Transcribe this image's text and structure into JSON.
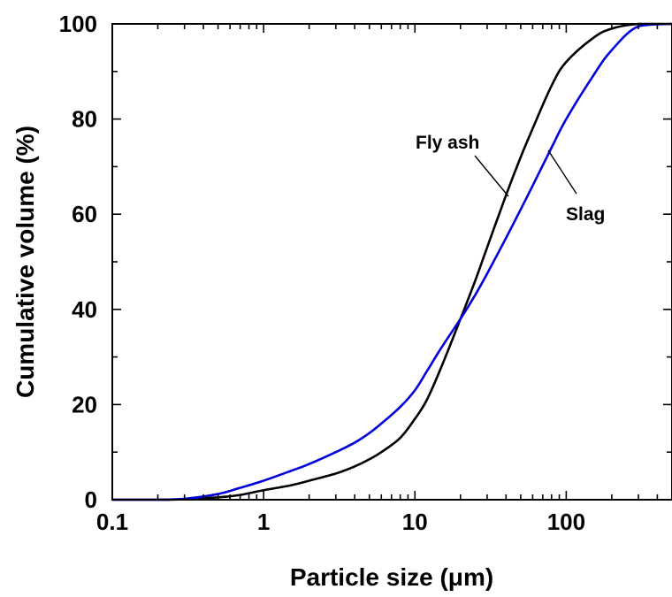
{
  "chart_data": {
    "type": "line",
    "xlabel": "Particle size (μm)",
    "ylabel": "Cumulative volume (%)",
    "x_scale": "log",
    "xlim": [
      0.1,
      500
    ],
    "ylim": [
      0,
      100
    ],
    "x_ticks": [
      0.1,
      1,
      10,
      100
    ],
    "x_tick_labels": [
      "0.1",
      "1",
      "10",
      "100"
    ],
    "y_ticks": [
      0,
      20,
      40,
      60,
      80,
      100
    ],
    "y_tick_labels": [
      "0",
      "20",
      "40",
      "60",
      "80",
      "100"
    ],
    "grid": false,
    "series": [
      {
        "name": "Fly ash",
        "color": "#000000",
        "x": [
          0.1,
          0.2,
          0.3,
          0.5,
          0.7,
          1,
          1.5,
          2,
          3,
          4,
          5,
          6,
          8,
          10,
          12,
          15,
          20,
          25,
          30,
          40,
          50,
          60,
          80,
          100,
          150,
          200,
          300,
          500
        ],
        "y": [
          0,
          0,
          0.1,
          0.5,
          1,
          2,
          3,
          4,
          5.5,
          7,
          8.5,
          10,
          13,
          17,
          21,
          28,
          38,
          46,
          53,
          64,
          72,
          78,
          87,
          92,
          97,
          99,
          100,
          100
        ]
      },
      {
        "name": "Slag",
        "color": "#0000dd",
        "x": [
          0.1,
          0.2,
          0.3,
          0.5,
          0.7,
          1,
          1.5,
          2,
          3,
          4,
          5,
          6,
          8,
          10,
          12,
          15,
          20,
          25,
          30,
          40,
          50,
          60,
          80,
          100,
          150,
          200,
          300,
          500
        ],
        "y": [
          0,
          0,
          0.2,
          1.2,
          2.5,
          4,
          6,
          7.5,
          10,
          12,
          14,
          16,
          19.5,
          23,
          27,
          32,
          38,
          43,
          47.5,
          55,
          61,
          66,
          74,
          80,
          89,
          94.5,
          99.5,
          100
        ]
      }
    ],
    "annotations": [
      {
        "text": "Fly ash",
        "series": "Fly ash"
      },
      {
        "text": "Slag",
        "series": "Slag"
      }
    ]
  }
}
